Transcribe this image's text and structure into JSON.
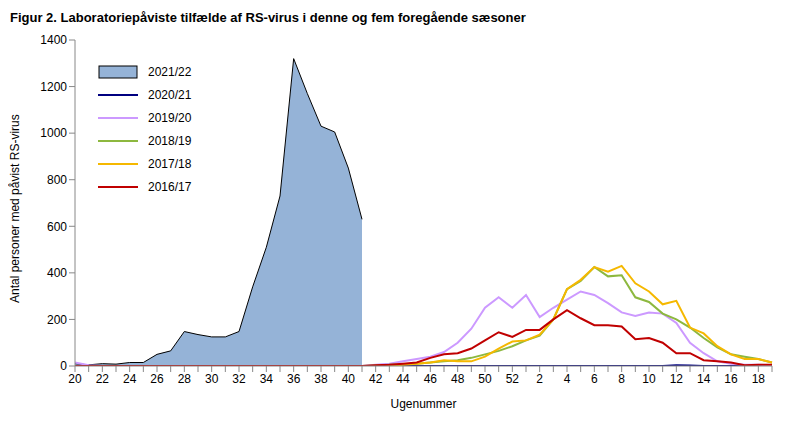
{
  "chart_data": {
    "type": "line",
    "title": "Figur 2. Laboratoriepåviste tilfælde af RS-virus i denne og fem foregående sæsoner",
    "x_label": "Ugenummer",
    "y_label": "Antal personer med påvist RS-virus",
    "categories": [
      20,
      null,
      22,
      null,
      24,
      null,
      26,
      null,
      28,
      null,
      30,
      null,
      32,
      null,
      34,
      null,
      36,
      null,
      38,
      null,
      40,
      null,
      42,
      null,
      44,
      null,
      46,
      null,
      48,
      null,
      50,
      null,
      52,
      null,
      2,
      null,
      4,
      null,
      6,
      null,
      8,
      null,
      10,
      null,
      12,
      null,
      14,
      null,
      16,
      null,
      18,
      null
    ],
    "ylim": [
      0,
      1400
    ],
    "yticks": [
      0,
      200,
      400,
      600,
      800,
      1000,
      1200,
      1400
    ],
    "grid": false,
    "legend": "upper left",
    "series": [
      {
        "name": "2021/22",
        "type": "area",
        "color": "#95b3d7",
        "values": [
          10,
          5,
          10,
          8,
          15,
          15,
          50,
          65,
          148,
          135,
          125,
          125,
          148,
          340,
          510,
          730,
          1320,
          1170,
          1030,
          1005,
          850,
          630,
          null,
          null,
          null,
          null,
          null,
          null,
          null,
          null,
          null,
          null,
          null,
          null,
          null,
          null,
          null,
          null,
          null,
          null,
          null,
          null,
          null,
          null,
          null,
          null,
          null,
          null,
          null,
          null,
          null,
          null
        ]
      },
      {
        "name": "2020/21",
        "type": "line",
        "color": "#000080",
        "values": [
          0,
          0,
          0,
          0,
          0,
          0,
          0,
          0,
          0,
          0,
          0,
          0,
          0,
          0,
          0,
          0,
          0,
          0,
          0,
          0,
          0,
          0,
          0,
          0,
          0,
          0,
          0,
          0,
          0,
          0,
          0,
          0,
          0,
          0,
          0,
          0,
          0,
          0,
          0,
          0,
          0,
          0,
          0,
          0,
          3,
          2,
          0,
          0,
          0,
          0,
          0,
          0
        ]
      },
      {
        "name": "2019/20",
        "type": "line",
        "color": "#cc99ff",
        "values": [
          15,
          3,
          0,
          0,
          0,
          0,
          0,
          0,
          0,
          0,
          0,
          0,
          0,
          0,
          0,
          0,
          0,
          0,
          0,
          0,
          0,
          0,
          5,
          10,
          20,
          30,
          40,
          60,
          100,
          160,
          250,
          295,
          250,
          305,
          210,
          250,
          285,
          320,
          305,
          270,
          230,
          215,
          230,
          225,
          185,
          100,
          55,
          20,
          10,
          5,
          5,
          3
        ]
      },
      {
        "name": "2018/19",
        "type": "line",
        "color": "#8db83f",
        "values": [
          0,
          0,
          0,
          0,
          0,
          0,
          0,
          0,
          0,
          0,
          0,
          0,
          0,
          0,
          0,
          0,
          0,
          0,
          0,
          0,
          0,
          0,
          2,
          5,
          8,
          10,
          15,
          20,
          25,
          35,
          50,
          65,
          85,
          110,
          130,
          200,
          330,
          365,
          425,
          385,
          390,
          295,
          275,
          225,
          200,
          165,
          120,
          80,
          50,
          40,
          30,
          15
        ]
      },
      {
        "name": "2017/18",
        "type": "line",
        "color": "#f5b800",
        "values": [
          0,
          0,
          0,
          0,
          0,
          0,
          0,
          0,
          0,
          0,
          0,
          0,
          0,
          0,
          0,
          0,
          0,
          0,
          0,
          0,
          0,
          0,
          0,
          2,
          5,
          10,
          15,
          25,
          20,
          20,
          40,
          75,
          105,
          110,
          135,
          200,
          330,
          370,
          425,
          405,
          430,
          355,
          320,
          265,
          280,
          165,
          140,
          85,
          50,
          30,
          30,
          15
        ]
      },
      {
        "name": "2016/17",
        "type": "line",
        "color": "#c00000",
        "values": [
          0,
          0,
          0,
          0,
          0,
          0,
          0,
          0,
          0,
          0,
          0,
          0,
          0,
          0,
          0,
          0,
          0,
          0,
          0,
          0,
          0,
          0,
          3,
          5,
          10,
          15,
          35,
          50,
          55,
          75,
          110,
          145,
          125,
          155,
          155,
          200,
          240,
          205,
          175,
          175,
          170,
          115,
          120,
          100,
          55,
          55,
          25,
          20,
          15,
          3,
          5,
          5
        ]
      }
    ]
  }
}
